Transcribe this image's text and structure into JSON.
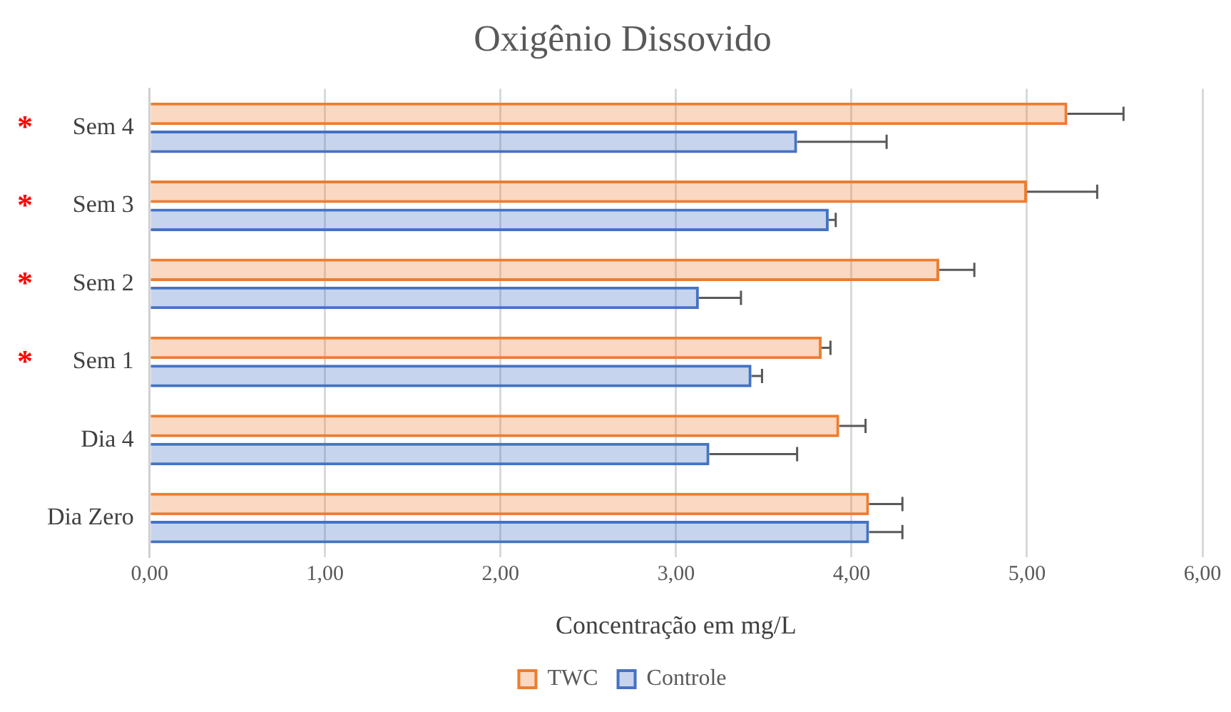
{
  "chart_data": {
    "type": "bar",
    "orientation": "horizontal",
    "title": "Oxigênio Dissovido",
    "xlabel": "Concentração em mg/L",
    "categories": [
      "Sem 4",
      "Sem 3",
      "Sem 2",
      "Sem 1",
      "Dia 4",
      "Dia Zero"
    ],
    "series": [
      {
        "name": "TWC",
        "color": "#ed7d31",
        "values": [
          5.23,
          5.0,
          4.5,
          3.83,
          3.93,
          4.1
        ],
        "errors": [
          0.32,
          0.4,
          0.2,
          0.05,
          0.15,
          0.19
        ]
      },
      {
        "name": "Controle",
        "color": "#4472c4",
        "values": [
          3.69,
          3.87,
          3.13,
          3.43,
          3.19,
          4.1
        ],
        "errors": [
          0.51,
          0.04,
          0.24,
          0.06,
          0.5,
          0.19
        ]
      }
    ],
    "xlim": [
      0,
      6
    ],
    "xticks": [
      {
        "value": 0,
        "label": "0,00"
      },
      {
        "value": 1,
        "label": "1,00"
      },
      {
        "value": 2,
        "label": "2,00"
      },
      {
        "value": 3,
        "label": "3,00"
      },
      {
        "value": 4,
        "label": "4,00"
      },
      {
        "value": 5,
        "label": "5,00"
      },
      {
        "value": 6,
        "label": "6,00"
      }
    ],
    "grid": "x",
    "legend": "bottom",
    "annotations": [
      "*",
      "*",
      "*",
      "*"
    ]
  }
}
